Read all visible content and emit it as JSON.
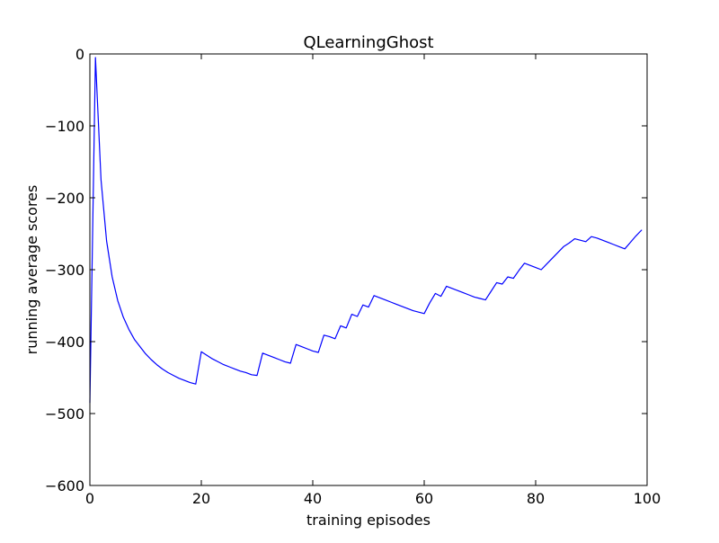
{
  "chart_data": {
    "type": "line",
    "title": "QLearningGhost",
    "xlabel": "training episodes",
    "ylabel": "running average scores",
    "xlim": [
      0,
      100
    ],
    "ylim": [
      -600,
      0
    ],
    "x_ticks": [
      0,
      20,
      40,
      60,
      80,
      100
    ],
    "x_tick_labels": [
      "0",
      "20",
      "40",
      "60",
      "80",
      "100"
    ],
    "y_ticks": [
      0,
      -100,
      -200,
      -300,
      -400,
      -500,
      -600
    ],
    "y_tick_labels": [
      "0",
      "−100",
      "−200",
      "−300",
      "−400",
      "−500",
      "−600"
    ],
    "grid": false,
    "series": [
      {
        "color": "#0000ff",
        "x": [
          0,
          1,
          2,
          3,
          4,
          5,
          6,
          7,
          8,
          9,
          10,
          11,
          12,
          13,
          14,
          15,
          16,
          17,
          18,
          19,
          20,
          21,
          22,
          23,
          24,
          25,
          26,
          27,
          28,
          29,
          30,
          31,
          32,
          33,
          34,
          35,
          36,
          37,
          38,
          39,
          40,
          41,
          42,
          43,
          44,
          45,
          46,
          47,
          48,
          49,
          50,
          51,
          52,
          53,
          54,
          55,
          56,
          57,
          58,
          59,
          60,
          61,
          62,
          63,
          64,
          65,
          66,
          67,
          68,
          69,
          70,
          71,
          72,
          73,
          74,
          75,
          76,
          77,
          78,
          79,
          80,
          81,
          82,
          83,
          84,
          85,
          86,
          87,
          88,
          89,
          90,
          91,
          92,
          93,
          94,
          95,
          96,
          97,
          98,
          99
        ],
        "y": [
          -485,
          -5,
          -175,
          -260,
          -310,
          -343,
          -366,
          -383,
          -397,
          -407,
          -417,
          -425,
          -432,
          -438,
          -443,
          -447,
          -451,
          -454,
          -457,
          -459,
          -414,
          -419,
          -424,
          -428,
          -432,
          -435,
          -438,
          -441,
          -443,
          -446,
          -447,
          -416,
          -419,
          -422,
          -425,
          -428,
          -430,
          -404,
          -407,
          -410,
          -413,
          -415,
          -391,
          -393,
          -396,
          -378,
          -381,
          -362,
          -365,
          -349,
          -352,
          -336,
          -339,
          -342,
          -345,
          -348,
          -351,
          -354,
          -357,
          -359,
          -361,
          -346,
          -333,
          -337,
          -323,
          -326,
          -329,
          -332,
          -335,
          -338,
          -340,
          -342,
          -330,
          -318,
          -320,
          -310,
          -312,
          -301,
          -291,
          -294,
          -297,
          -300,
          -292,
          -284,
          -276,
          -268,
          -263,
          -257,
          -259,
          -261,
          -254,
          -256,
          -259,
          -262,
          -265,
          -268,
          -271,
          -262,
          -253,
          -245
        ]
      }
    ]
  }
}
